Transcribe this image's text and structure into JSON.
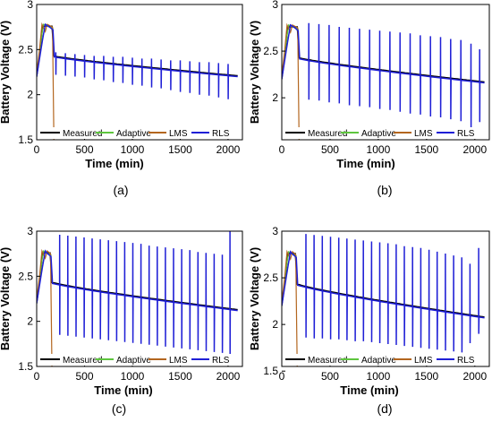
{
  "chart_data": [
    {
      "panel": "(a)",
      "type": "line",
      "xlabel": "Time (min)",
      "ylabel": "Battery Voltage (V)",
      "xlim": [
        0,
        2150
      ],
      "ylim": [
        1.5,
        3.0
      ],
      "xticks": [
        "0",
        "500",
        "1000",
        "1500",
        "2000"
      ],
      "xticks_minor": [
        "0",
        "250",
        "500",
        "750",
        "1000",
        "1250",
        "1500",
        "1750",
        "2000"
      ],
      "xticks_shown": [
        "0",
        "500",
        "1000",
        "1500",
        "2000"
      ],
      "yticks": [
        "1.5",
        "2",
        "2.5",
        "3"
      ],
      "grid": false,
      "legend": "bottom",
      "baseline": {
        "start": 2.42,
        "end": 2.2,
        "decay": 0.85
      },
      "initial": {
        "rise_from": 2.2,
        "peak": 2.78,
        "hold_end": 175
      },
      "spikes": {
        "times": [
          200,
          300,
          400,
          500,
          600,
          700,
          800,
          900,
          1000,
          1100,
          1200,
          1300,
          1400,
          1500,
          1600,
          1700,
          1800,
          1900,
          2000
        ],
        "up": [
          2.47,
          2.46,
          2.45,
          2.44,
          2.43,
          2.43,
          2.42,
          2.42,
          2.41,
          2.4,
          2.4,
          2.39,
          2.38,
          2.38,
          2.37,
          2.36,
          2.36,
          2.35,
          2.34
        ],
        "down": [
          2.22,
          2.21,
          2.2,
          2.19,
          2.17,
          2.16,
          2.14,
          2.13,
          2.11,
          2.1,
          2.08,
          2.07,
          2.05,
          2.03,
          2.02,
          2.0,
          1.99,
          1.97,
          1.95
        ]
      },
      "series": [
        {
          "name": "Measured",
          "color": "#000000"
        },
        {
          "name": "Adaptive",
          "color": "#5ec53e"
        },
        {
          "name": "LMS",
          "color": "#b3661f"
        },
        {
          "name": "RLS",
          "color": "#1f1fd6"
        }
      ]
    },
    {
      "panel": "(b)",
      "type": "line",
      "xlabel": "Time (min)",
      "ylabel": "Battery Voltage (V)",
      "xlim": [
        0,
        2150
      ],
      "ylim": [
        1.55,
        3.0
      ],
      "xticks": [
        "0",
        "500",
        "1000",
        "1500",
        "2000"
      ],
      "xticks_minor": [
        "0",
        "250",
        "500",
        "750",
        "1000",
        "1250",
        "1500",
        "1750",
        "2000"
      ],
      "xticks_shown": [
        "0",
        "500",
        "1000",
        "1500",
        "2000"
      ],
      "yticks": [
        "2",
        "2.5",
        "3"
      ],
      "grid": false,
      "legend": "bottom",
      "baseline": {
        "start": 2.42,
        "end": 2.16,
        "decay": 0.85
      },
      "initial": {
        "rise_from": 2.2,
        "peak": 2.78,
        "hold_end": 175
      },
      "spikes": {
        "times": [
          175,
          280,
          385,
          490,
          595,
          700,
          805,
          910,
          1015,
          1120,
          1225,
          1330,
          1435,
          1540,
          1645,
          1750,
          1855,
          1960,
          2050
        ],
        "up": [
          2.98,
          2.8,
          2.79,
          2.78,
          2.76,
          2.75,
          2.74,
          2.73,
          2.72,
          2.71,
          2.7,
          2.69,
          2.67,
          2.66,
          2.65,
          2.63,
          2.62,
          2.58,
          2.52
        ],
        "down": [
          2.08,
          1.98,
          1.97,
          1.95,
          1.94,
          1.92,
          1.91,
          1.9,
          1.88,
          1.87,
          1.85,
          1.83,
          1.82,
          1.8,
          1.79,
          1.77,
          1.75,
          1.62,
          1.74
        ]
      },
      "series": [
        {
          "name": "Measured",
          "color": "#000000"
        },
        {
          "name": "Adaptive",
          "color": "#5ec53e"
        },
        {
          "name": "LMS",
          "color": "#b3661f"
        },
        {
          "name": "RLS",
          "color": "#1f1fd6"
        }
      ]
    },
    {
      "panel": "(c)",
      "type": "line",
      "xlabel": "Time (min)",
      "ylabel": "Battery Voltage (V)",
      "xlim": [
        0,
        2150
      ],
      "ylim": [
        1.5,
        3.0
      ],
      "xticks": [
        "0",
        "500",
        "1000",
        "1500",
        "2000"
      ],
      "xticks_minor": [
        "0",
        "250",
        "500",
        "750",
        "1000",
        "1250",
        "1500",
        "1750",
        "2000"
      ],
      "xticks_shown": [
        "0",
        "500",
        "1000",
        "1500",
        "2000"
      ],
      "yticks": [
        "1.5",
        "2",
        "2.5",
        "3"
      ],
      "grid": false,
      "legend": "bottom",
      "baseline": {
        "start": 2.42,
        "end": 2.12,
        "decay": 0.85
      },
      "initial": {
        "rise_from": 2.2,
        "peak": 2.78,
        "hold_end": 155
      },
      "spikes": {
        "times": [
          155,
          240,
          325,
          410,
          495,
          580,
          665,
          750,
          835,
          920,
          1005,
          1090,
          1175,
          1260,
          1345,
          1430,
          1515,
          1600,
          1685,
          1770,
          1855,
          1940,
          2020
        ],
        "up": [
          2.97,
          2.96,
          2.95,
          2.94,
          2.93,
          2.92,
          2.91,
          2.9,
          2.89,
          2.88,
          2.87,
          2.86,
          2.84,
          2.83,
          2.82,
          2.81,
          2.8,
          2.79,
          2.77,
          2.76,
          2.75,
          2.74,
          3.0
        ],
        "down": [
          1.86,
          1.85,
          1.84,
          1.83,
          1.82,
          1.81,
          1.8,
          1.79,
          1.78,
          1.77,
          1.76,
          1.75,
          1.74,
          1.73,
          1.72,
          1.71,
          1.7,
          1.69,
          1.68,
          1.67,
          1.66,
          1.65,
          1.6
        ]
      },
      "series": [
        {
          "name": "Measured",
          "color": "#000000"
        },
        {
          "name": "Adaptive",
          "color": "#5ec53e"
        },
        {
          "name": "LMS",
          "color": "#b3661f"
        },
        {
          "name": "RLS",
          "color": "#1f1fd6"
        }
      ]
    },
    {
      "panel": "(d)",
      "type": "line",
      "xlabel": "Time (min)",
      "ylabel": "Battery Voltage (V)",
      "xlim": [
        0,
        2150
      ],
      "ylim": [
        1.55,
        3.0
      ],
      "xticks": [
        "0",
        "500",
        "1000",
        "1500",
        "2000"
      ],
      "xticks_minor": [
        "0",
        "250",
        "500",
        "750",
        "1000",
        "1250",
        "1500",
        "1750",
        "2000"
      ],
      "xticks_shown": [
        "0",
        "500",
        "1000",
        "1500",
        "2000"
      ],
      "yticks": [
        "1.5",
        "2",
        "2.5",
        "3"
      ],
      "grid": false,
      "legend": "bottom",
      "baseline": {
        "start": 2.42,
        "end": 2.07,
        "decay": 0.85
      },
      "initial": {
        "rise_from": 2.2,
        "peak": 2.78,
        "hold_end": 155
      },
      "spikes": {
        "times": [
          165,
          250,
          335,
          420,
          505,
          590,
          675,
          760,
          845,
          930,
          1015,
          1100,
          1185,
          1270,
          1355,
          1440,
          1525,
          1610,
          1695,
          1780,
          1865,
          1950,
          2040
        ],
        "up": [
          2.98,
          2.97,
          2.96,
          2.95,
          2.94,
          2.93,
          2.92,
          2.91,
          2.9,
          2.89,
          2.88,
          2.87,
          2.86,
          2.84,
          2.83,
          2.82,
          2.8,
          2.78,
          2.76,
          2.74,
          2.72,
          2.65,
          2.82
        ],
        "down": [
          1.86,
          1.86,
          1.85,
          1.85,
          1.84,
          1.84,
          1.83,
          1.82,
          1.82,
          1.81,
          1.8,
          1.79,
          1.78,
          1.77,
          1.76,
          1.75,
          1.74,
          1.73,
          1.72,
          1.71,
          1.7,
          1.8,
          1.9
        ]
      },
      "series": [
        {
          "name": "Measured",
          "color": "#000000"
        },
        {
          "name": "Adaptive",
          "color": "#5ec53e"
        },
        {
          "name": "LMS",
          "color": "#b3661f"
        },
        {
          "name": "RLS",
          "color": "#1f1fd6"
        }
      ]
    }
  ]
}
